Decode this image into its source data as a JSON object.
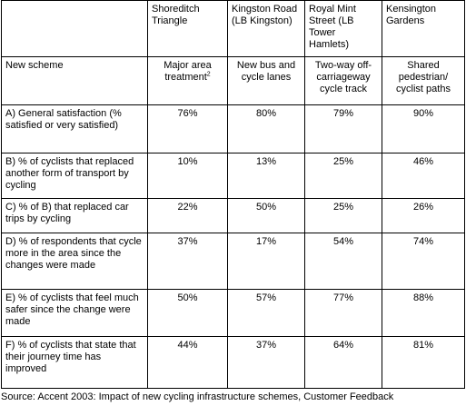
{
  "table": {
    "columns": [
      "Shoreditch Triangle",
      "Kingston Road (LB Kingston)",
      "Royal Mint Street (LB Tower Hamlets)",
      "Kensington Gardens"
    ],
    "scheme": {
      "label": "New scheme",
      "values": [
        "Major area treatment",
        "New bus and cycle lanes",
        "Two-way off-carriageway cycle track",
        "Shared pedestrian/ cyclist paths"
      ],
      "footnote": "2"
    },
    "rows": [
      {
        "label": "A) General satisfaction (% satisfied or very satisfied)",
        "values": [
          "76%",
          "80%",
          "79%",
          "90%"
        ]
      },
      {
        "label": "B) % of cyclists that replaced another form of transport by cycling",
        "values": [
          "10%",
          "13%",
          "25%",
          "46%"
        ]
      },
      {
        "label": "C) % of B) that replaced car trips by cycling",
        "values": [
          "22%",
          "50%",
          "25%",
          "26%"
        ]
      },
      {
        "label": "D) % of respondents that cycle more in the area since the changes were made",
        "values": [
          "37%",
          "17%",
          "54%",
          "74%"
        ]
      },
      {
        "label": "E) % of cyclists that feel much safer since the change were made",
        "values": [
          "50%",
          "57%",
          "77%",
          "88%"
        ]
      },
      {
        "label": "F) % of cyclists that state that their journey time has improved",
        "values": [
          "44%",
          "37%",
          "64%",
          "81%"
        ]
      }
    ]
  },
  "source": "Source: Accent 2003: Impact of new cycling infrastructure schemes, Customer Feedback"
}
